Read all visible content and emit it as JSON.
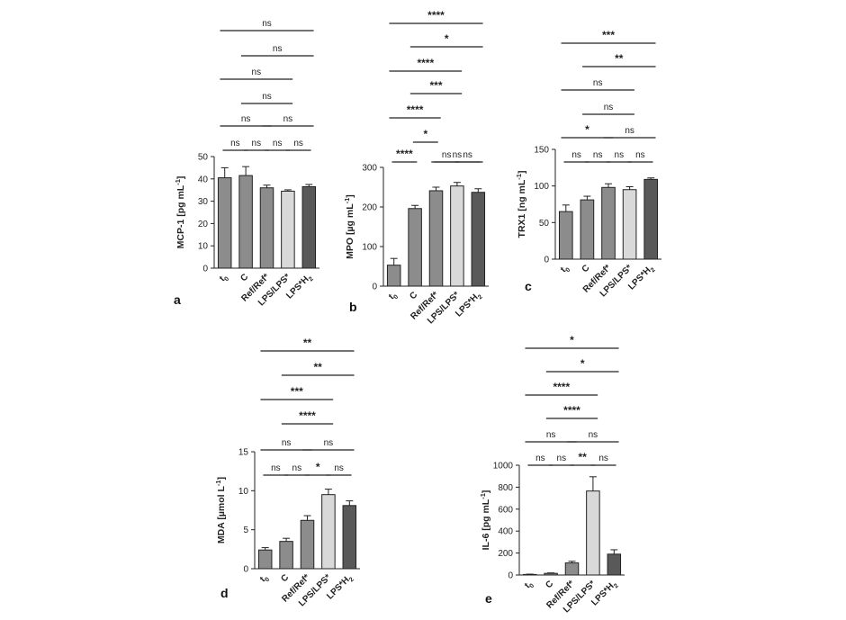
{
  "panel_labels": [
    "a",
    "b",
    "c",
    "d",
    "e"
  ],
  "chart_data": [
    {
      "type": "bar",
      "panel": "a",
      "ylabel": "MCP-1 [pg mL",
      "ylabel_sup": "-1",
      "ylabel_end": "]",
      "ylim": [
        0,
        50
      ],
      "yticks": [
        0,
        10,
        20,
        30,
        40,
        50
      ],
      "categories": [
        "t0",
        "C",
        "Ref/Ref*",
        "LPS/LPS*",
        "LPS*H2"
      ],
      "values": [
        40.5,
        41.5,
        36,
        34.5,
        36.5
      ],
      "errors": [
        4.5,
        4.0,
        1.2,
        0.6,
        1.0
      ],
      "colors": [
        "#8c8c8c",
        "#8c8c8c",
        "#8c8c8c",
        "#d9d9d9",
        "#595959"
      ],
      "annotations": [
        {
          "from": 0,
          "to": 4,
          "label": "ns"
        },
        {
          "from": 1,
          "to": 4,
          "label": "ns"
        },
        {
          "from": 0,
          "to": 3,
          "label": "ns"
        },
        {
          "from": 1,
          "to": 3,
          "label": "ns"
        },
        {
          "from": 0,
          "to": 2,
          "label": "ns"
        },
        {
          "from": 2,
          "to": 4,
          "label": "ns"
        },
        {
          "from": 0,
          "to": 1,
          "label": "ns"
        },
        {
          "from": 1,
          "to": 2,
          "label": "ns"
        },
        {
          "from": 2,
          "to": 3,
          "label": "ns"
        },
        {
          "from": 3,
          "to": 4,
          "label": "ns"
        }
      ]
    },
    {
      "type": "bar",
      "panel": "b",
      "ylabel": "MPO [µg mL",
      "ylabel_sup": "-1",
      "ylabel_end": "]",
      "ylim": [
        0,
        300
      ],
      "yticks": [
        0,
        100,
        200,
        300
      ],
      "categories": [
        "t0",
        "C",
        "Ref/Ref*",
        "LPS/LPS*",
        "LPS*H2"
      ],
      "values": [
        53,
        196,
        241,
        253,
        237
      ],
      "errors": [
        17,
        8,
        9,
        9,
        9
      ],
      "colors": [
        "#8c8c8c",
        "#8c8c8c",
        "#8c8c8c",
        "#d9d9d9",
        "#595959"
      ],
      "annotations": [
        {
          "from": 0,
          "to": 4,
          "label": "****"
        },
        {
          "from": 1,
          "to": 4,
          "label": "*"
        },
        {
          "from": 0,
          "to": 3,
          "label": "****"
        },
        {
          "from": 1,
          "to": 3,
          "label": "***"
        },
        {
          "from": 0,
          "to": 2,
          "label": "****"
        },
        {
          "from": 1,
          "to": 2,
          "label": "*"
        },
        {
          "from": 2,
          "to": 4,
          "label": "ns"
        },
        {
          "from": 0,
          "to": 1,
          "label": "****"
        },
        {
          "from": 2,
          "to": 3,
          "label": "ns"
        },
        {
          "from": 3,
          "to": 4,
          "label": "ns"
        }
      ]
    },
    {
      "type": "bar",
      "panel": "c",
      "ylabel": "TRX1 [ng mL",
      "ylabel_sup": "-1",
      "ylabel_end": "]",
      "ylim": [
        0,
        150
      ],
      "yticks": [
        0,
        50,
        100,
        150
      ],
      "categories": [
        "t0",
        "C",
        "Ref/Ref*",
        "LPS/LPS*",
        "LPS*H2"
      ],
      "values": [
        65,
        81,
        98,
        95,
        109
      ],
      "errors": [
        9,
        5,
        5,
        4,
        2
      ],
      "colors": [
        "#8c8c8c",
        "#8c8c8c",
        "#8c8c8c",
        "#d9d9d9",
        "#595959"
      ],
      "annotations": [
        {
          "from": 0,
          "to": 4,
          "label": "***"
        },
        {
          "from": 1,
          "to": 4,
          "label": "**"
        },
        {
          "from": 0,
          "to": 3,
          "label": "ns"
        },
        {
          "from": 1,
          "to": 3,
          "label": "ns"
        },
        {
          "from": 0,
          "to": 2,
          "label": "*"
        },
        {
          "from": 2,
          "to": 4,
          "label": "ns"
        },
        {
          "from": 0,
          "to": 1,
          "label": "ns"
        },
        {
          "from": 1,
          "to": 2,
          "label": "ns"
        },
        {
          "from": 2,
          "to": 3,
          "label": "ns"
        },
        {
          "from": 3,
          "to": 4,
          "label": "ns"
        }
      ]
    },
    {
      "type": "bar",
      "panel": "d",
      "ylabel": "MDA [µmol L",
      "ylabel_sup": "-1",
      "ylabel_end": "]",
      "ylim": [
        0,
        15
      ],
      "yticks": [
        0,
        5,
        10,
        15
      ],
      "categories": [
        "t0",
        "C",
        "Ref/Ref*",
        "LPS/LPS*",
        "LPS*H2"
      ],
      "values": [
        2.4,
        3.5,
        6.2,
        9.5,
        8.1
      ],
      "errors": [
        0.3,
        0.4,
        0.6,
        0.7,
        0.6
      ],
      "colors": [
        "#8c8c8c",
        "#8c8c8c",
        "#8c8c8c",
        "#d9d9d9",
        "#595959"
      ],
      "annotations": [
        {
          "from": 0,
          "to": 4,
          "label": "**"
        },
        {
          "from": 1,
          "to": 4,
          "label": "**"
        },
        {
          "from": 0,
          "to": 3,
          "label": "***"
        },
        {
          "from": 1,
          "to": 3,
          "label": "****"
        },
        {
          "from": 0,
          "to": 2,
          "label": "ns"
        },
        {
          "from": 2,
          "to": 4,
          "label": "ns"
        },
        {
          "from": 0,
          "to": 1,
          "label": "ns"
        },
        {
          "from": 1,
          "to": 2,
          "label": "ns"
        },
        {
          "from": 2,
          "to": 3,
          "label": "*"
        },
        {
          "from": 3,
          "to": 4,
          "label": "ns"
        }
      ]
    },
    {
      "type": "bar",
      "panel": "e",
      "ylabel": "IL-6 [pg mL",
      "ylabel_sup": "-1",
      "ylabel_end": "]",
      "ylim": [
        0,
        1000
      ],
      "yticks": [
        0,
        200,
        400,
        600,
        800,
        1000
      ],
      "categories": [
        "t0",
        "C",
        "Ref/Ref*",
        "LPS/LPS*",
        "LPS*H2"
      ],
      "values": [
        5,
        15,
        110,
        765,
        190
      ],
      "errors": [
        3,
        4,
        15,
        130,
        40
      ],
      "colors": [
        "#8c8c8c",
        "#8c8c8c",
        "#8c8c8c",
        "#d9d9d9",
        "#595959"
      ],
      "annotations": [
        {
          "from": 0,
          "to": 4,
          "label": "*"
        },
        {
          "from": 1,
          "to": 4,
          "label": "*"
        },
        {
          "from": 0,
          "to": 3,
          "label": "****"
        },
        {
          "from": 1,
          "to": 3,
          "label": "****"
        },
        {
          "from": 0,
          "to": 2,
          "label": "ns"
        },
        {
          "from": 2,
          "to": 4,
          "label": "ns"
        },
        {
          "from": 0,
          "to": 1,
          "label": "ns"
        },
        {
          "from": 1,
          "to": 2,
          "label": "ns"
        },
        {
          "from": 2,
          "to": 3,
          "label": "**"
        },
        {
          "from": 3,
          "to": 4,
          "label": "ns"
        }
      ]
    }
  ]
}
